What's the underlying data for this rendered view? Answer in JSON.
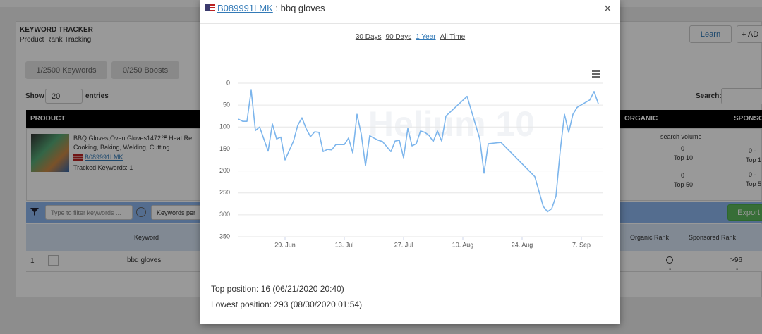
{
  "background": {
    "panel_title": "KEYWORD TRACKER",
    "panel_subtitle": "Product Rank Tracking",
    "learn": "Learn",
    "add": "+ AD",
    "keywords_quota": "1/2500 Keywords",
    "boosts_quota": "0/250 Boosts",
    "show": "Show",
    "entries_count": "20",
    "entries": "entries",
    "search": "Search:",
    "columns": [
      "PRODUCT",
      "ORGANIC",
      "SPONSO"
    ],
    "product": {
      "title_lines": [
        "BBQ Gloves,Oven Gloves1472℉ Heat Re",
        "Cooking, Baking, Welding, Cutting"
      ],
      "asin": "B089991LMK",
      "tracked": "Tracked Keywords: 1"
    },
    "organic": [
      "search volume",
      "0",
      "Top 10",
      "0",
      "Top 50"
    ],
    "sponsored": [
      "0  -",
      "Top 1",
      "0  -",
      "Top 5"
    ],
    "filter_placeholder": "Type to filter keywords ...",
    "keywords_per": "Keywords per",
    "export": "Export",
    "table_header": [
      "Keyword",
      "Organic Rank",
      "Sponsored Rank"
    ],
    "row": {
      "index": "1",
      "keyword": "bbq gloves",
      "organic": "-",
      "sponsored": ">96",
      "sponsored_sub": "-"
    }
  },
  "modal": {
    "asin": "B089991LMK",
    "keyword": ": bbq gloves",
    "close": "×",
    "ranges": [
      "30 Days",
      "90 Days",
      "1 Year",
      "All Time"
    ],
    "active_range": 2,
    "watermark": "Helium 10",
    "footer": [
      "Top position: 16 (06/21/2020 20:40)",
      "Lowest position: 293 (08/30/2020 01:54)"
    ]
  },
  "chart_data": {
    "type": "line",
    "color": "#7cb5ec",
    "x": [
      "06-18",
      "06-19",
      "06-20",
      "06-21",
      "06-22",
      "06-23",
      "06-25",
      "06-26",
      "06-27",
      "06-28",
      "06-29",
      "07-01",
      "07-02",
      "07-03",
      "07-04",
      "07-05",
      "07-06",
      "07-07",
      "07-08",
      "07-09",
      "07-10",
      "07-11",
      "07-13",
      "07-14",
      "07-15",
      "07-16",
      "07-17",
      "07-18",
      "07-19",
      "07-20",
      "07-21",
      "07-22",
      "07-24",
      "07-25",
      "07-26",
      "07-27",
      "07-28",
      "07-29",
      "07-30",
      "07-31",
      "08-01",
      "08-02",
      "08-03",
      "08-04",
      "08-05",
      "08-06",
      "08-09",
      "08-11",
      "08-14",
      "08-15",
      "08-16",
      "08-19",
      "08-27",
      "08-29",
      "08-30",
      "08-31",
      "09-01",
      "09-02",
      "09-03",
      "09-04",
      "09-05",
      "09-06",
      "09-09",
      "09-10",
      "09-11"
    ],
    "values": [
      82,
      87,
      87,
      16,
      108,
      100,
      155,
      93,
      127,
      123,
      175,
      132,
      96,
      79,
      104,
      122,
      111,
      112,
      156,
      151,
      152,
      140,
      140,
      125,
      159,
      71,
      116,
      188,
      120,
      125,
      130,
      133,
      156,
      132,
      130,
      170,
      103,
      143,
      138,
      109,
      112,
      119,
      133,
      109,
      132,
      75,
      48,
      30,
      127,
      205,
      138,
      135,
      213,
      281,
      293,
      286,
      257,
      154,
      71,
      112,
      71,
      55,
      38,
      19,
      47
    ],
    "xlim": [
      "06-18",
      "09-12"
    ],
    "xticks": [
      {
        "value": "06-29",
        "label": "29. Jun"
      },
      {
        "value": "07-13",
        "label": "13. Jul"
      },
      {
        "value": "07-27",
        "label": "27. Jul"
      },
      {
        "value": "08-10",
        "label": "10. Aug"
      },
      {
        "value": "08-24",
        "label": "24. Aug"
      },
      {
        "value": "09-07",
        "label": "7. Sep"
      }
    ],
    "ylim": [
      0,
      350
    ],
    "yticks": [
      0,
      50,
      100,
      150,
      200,
      250,
      300,
      350
    ],
    "y_reversed": true,
    "grid": true
  }
}
